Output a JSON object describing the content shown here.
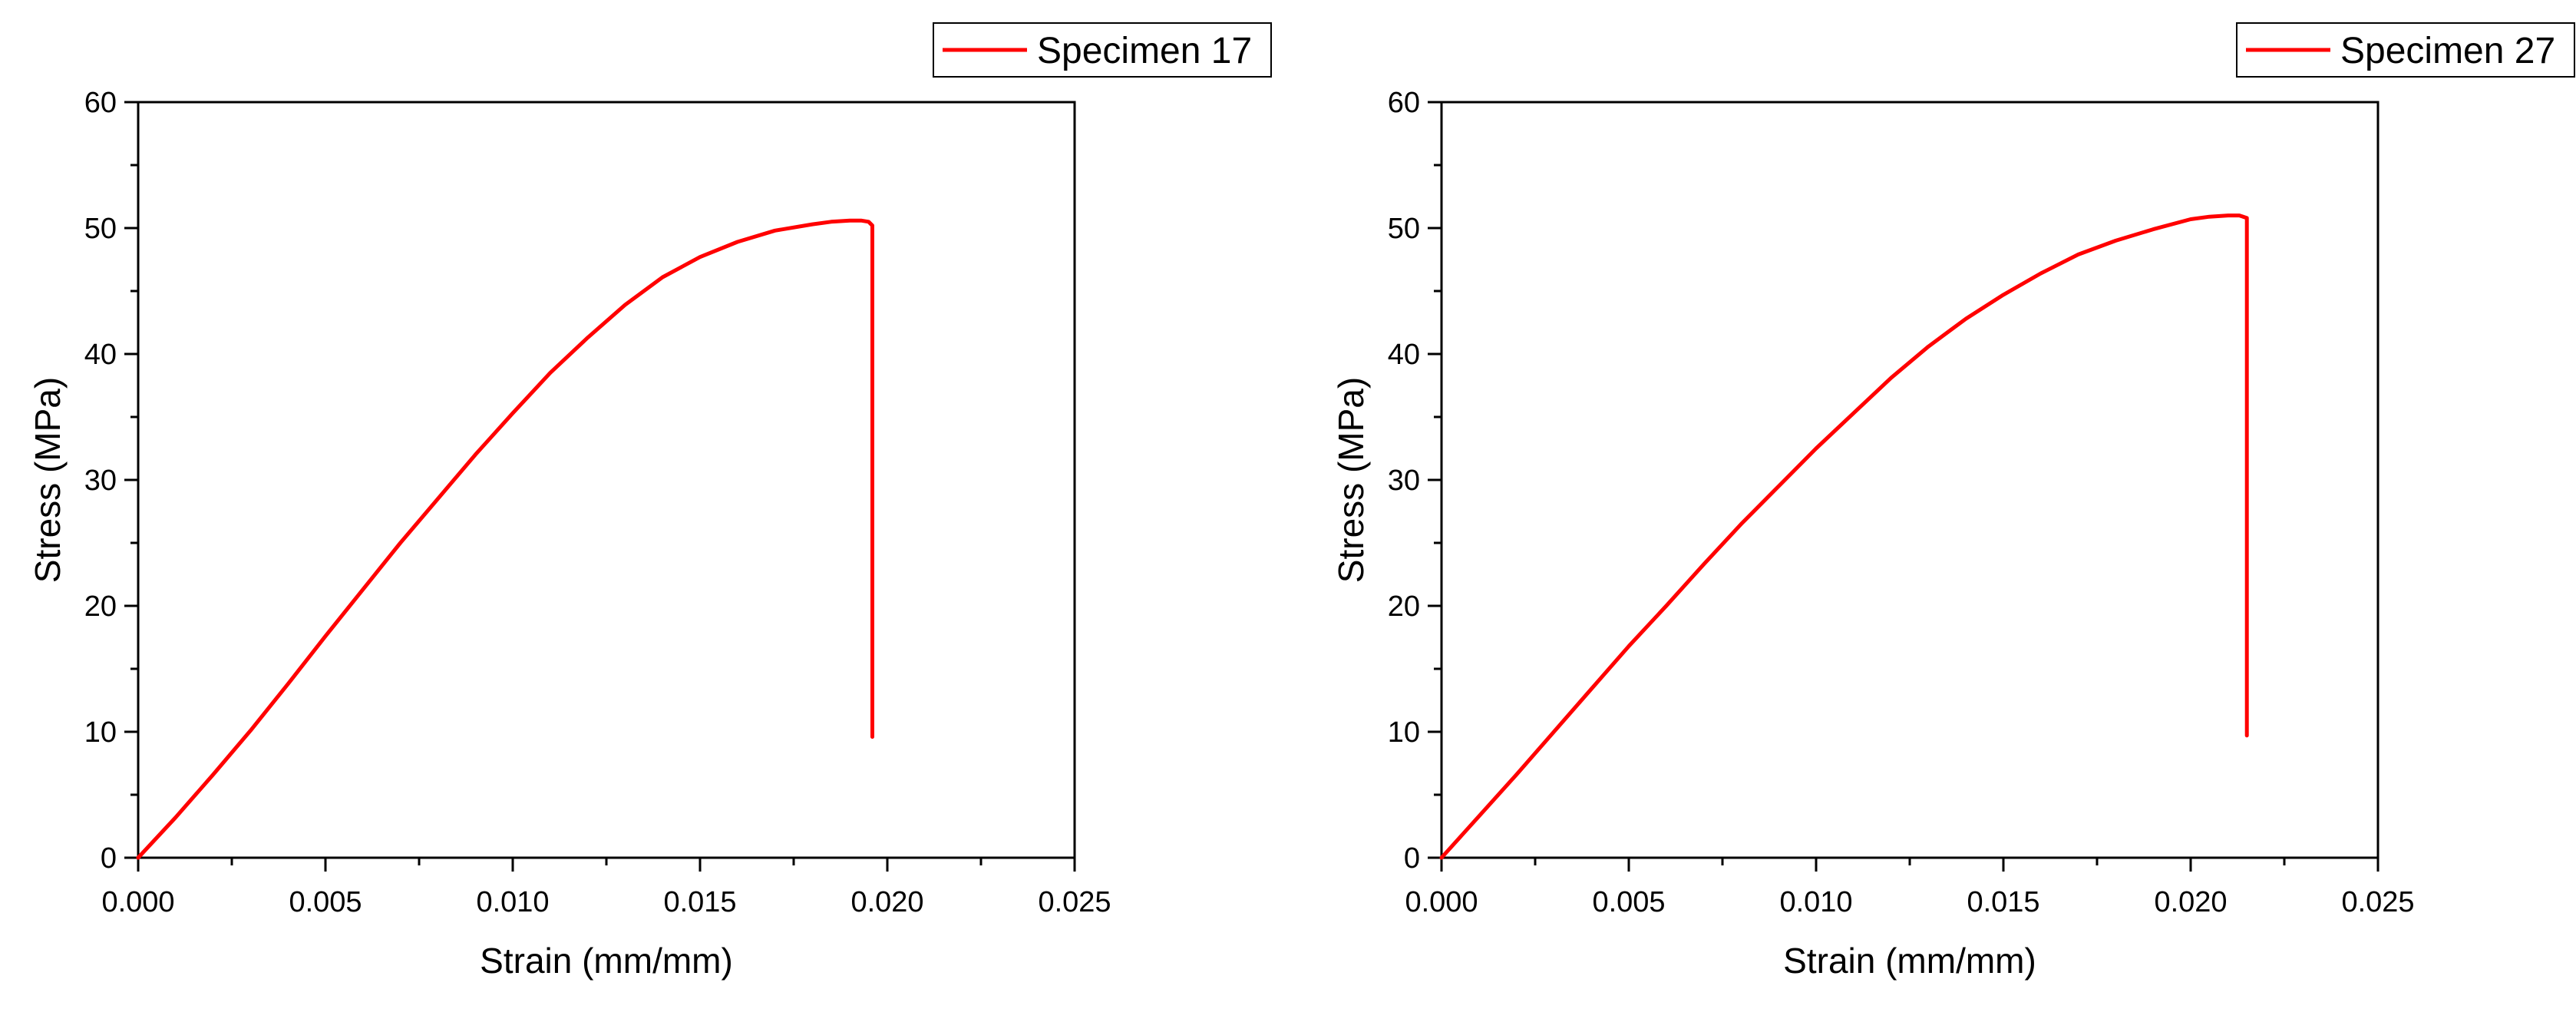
{
  "chart_data": [
    {
      "type": "line",
      "title": "",
      "xlabel": "Strain (mm/mm)",
      "ylabel": "Stress (MPa)",
      "xlim": [
        0,
        0.025
      ],
      "ylim": [
        0,
        60
      ],
      "x_ticks": [
        "0.000",
        "0.005",
        "0.010",
        "0.015",
        "0.020",
        "0.025"
      ],
      "y_ticks": [
        "0",
        "10",
        "20",
        "30",
        "40",
        "50",
        "60"
      ],
      "grid": false,
      "legend_position": "top-right",
      "series": [
        {
          "name": "Specimen 17",
          "color": "#ff0000",
          "x": [
            0,
            0.001,
            0.002,
            0.003,
            0.004,
            0.005,
            0.006,
            0.007,
            0.008,
            0.009,
            0.01,
            0.011,
            0.012,
            0.013,
            0.014,
            0.015,
            0.016,
            0.017,
            0.018,
            0.0185,
            0.019,
            0.0193,
            0.0195,
            0.0196,
            0.0196,
            0.0196
          ],
          "y": [
            0,
            3.2,
            6.6,
            10.1,
            13.8,
            17.6,
            21.3,
            25.0,
            28.5,
            32.0,
            35.3,
            38.5,
            41.3,
            43.9,
            46.1,
            47.7,
            48.9,
            49.8,
            50.3,
            50.5,
            50.6,
            50.6,
            50.5,
            50.2,
            30.0,
            9.6
          ]
        }
      ]
    },
    {
      "type": "line",
      "title": "",
      "xlabel": "Strain (mm/mm)",
      "ylabel": "Stress (MPa)",
      "xlim": [
        0,
        0.025
      ],
      "ylim": [
        0,
        60
      ],
      "x_ticks": [
        "0.000",
        "0.005",
        "0.010",
        "0.015",
        "0.020",
        "0.025"
      ],
      "y_ticks": [
        "0",
        "10",
        "20",
        "30",
        "40",
        "50",
        "60"
      ],
      "grid": false,
      "legend_position": "top-right",
      "series": [
        {
          "name": "Specimen 27",
          "color": "#ff0000",
          "x": [
            0,
            0.001,
            0.002,
            0.003,
            0.004,
            0.005,
            0.006,
            0.007,
            0.008,
            0.009,
            0.01,
            0.011,
            0.012,
            0.013,
            0.014,
            0.015,
            0.016,
            0.017,
            0.018,
            0.019,
            0.02,
            0.0205,
            0.021,
            0.0213,
            0.0215,
            0.0215,
            0.0215
          ],
          "y": [
            0,
            3.3,
            6.6,
            10.0,
            13.4,
            16.8,
            20.0,
            23.3,
            26.5,
            29.5,
            32.5,
            35.3,
            38.1,
            40.6,
            42.8,
            44.7,
            46.4,
            47.9,
            49.0,
            49.9,
            50.7,
            50.9,
            51.0,
            51.0,
            50.8,
            30.0,
            9.7
          ]
        }
      ]
    }
  ]
}
